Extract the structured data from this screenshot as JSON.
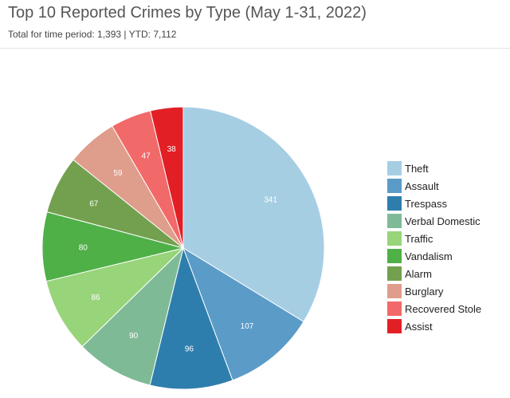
{
  "header": {
    "title": "Top 10 Reported Crimes by Type (May 1-31, 2022)",
    "subtitle": "Total for time period: 1,393 | YTD: 7,112"
  },
  "chart_data": {
    "type": "pie",
    "title": "Top 10 Reported Crimes by Type (May 1-31, 2022)",
    "subtitle": "Total for time period: 1,393 | YTD: 7,112",
    "legend_position": "right",
    "slices": [
      {
        "label": "Theft",
        "value": 341,
        "color": "#a6cee3"
      },
      {
        "label": "Assault",
        "value": 107,
        "color": "#5b9bc8"
      },
      {
        "label": "Trespass",
        "value": 96,
        "color": "#2e7ead"
      },
      {
        "label": "Verbal Domestic",
        "value": 90,
        "color": "#7fba96"
      },
      {
        "label": "Traffic",
        "value": 86,
        "color": "#98d47a"
      },
      {
        "label": "Vandalism",
        "value": 80,
        "color": "#4fb048"
      },
      {
        "label": "Alarm",
        "value": 67,
        "color": "#73a04e"
      },
      {
        "label": "Burglary",
        "value": 59,
        "color": "#df9d8c"
      },
      {
        "label": "Recovered Stole",
        "value": 47,
        "color": "#f26969"
      },
      {
        "label": "Assist",
        "value": 38,
        "color": "#e31f26"
      }
    ]
  }
}
